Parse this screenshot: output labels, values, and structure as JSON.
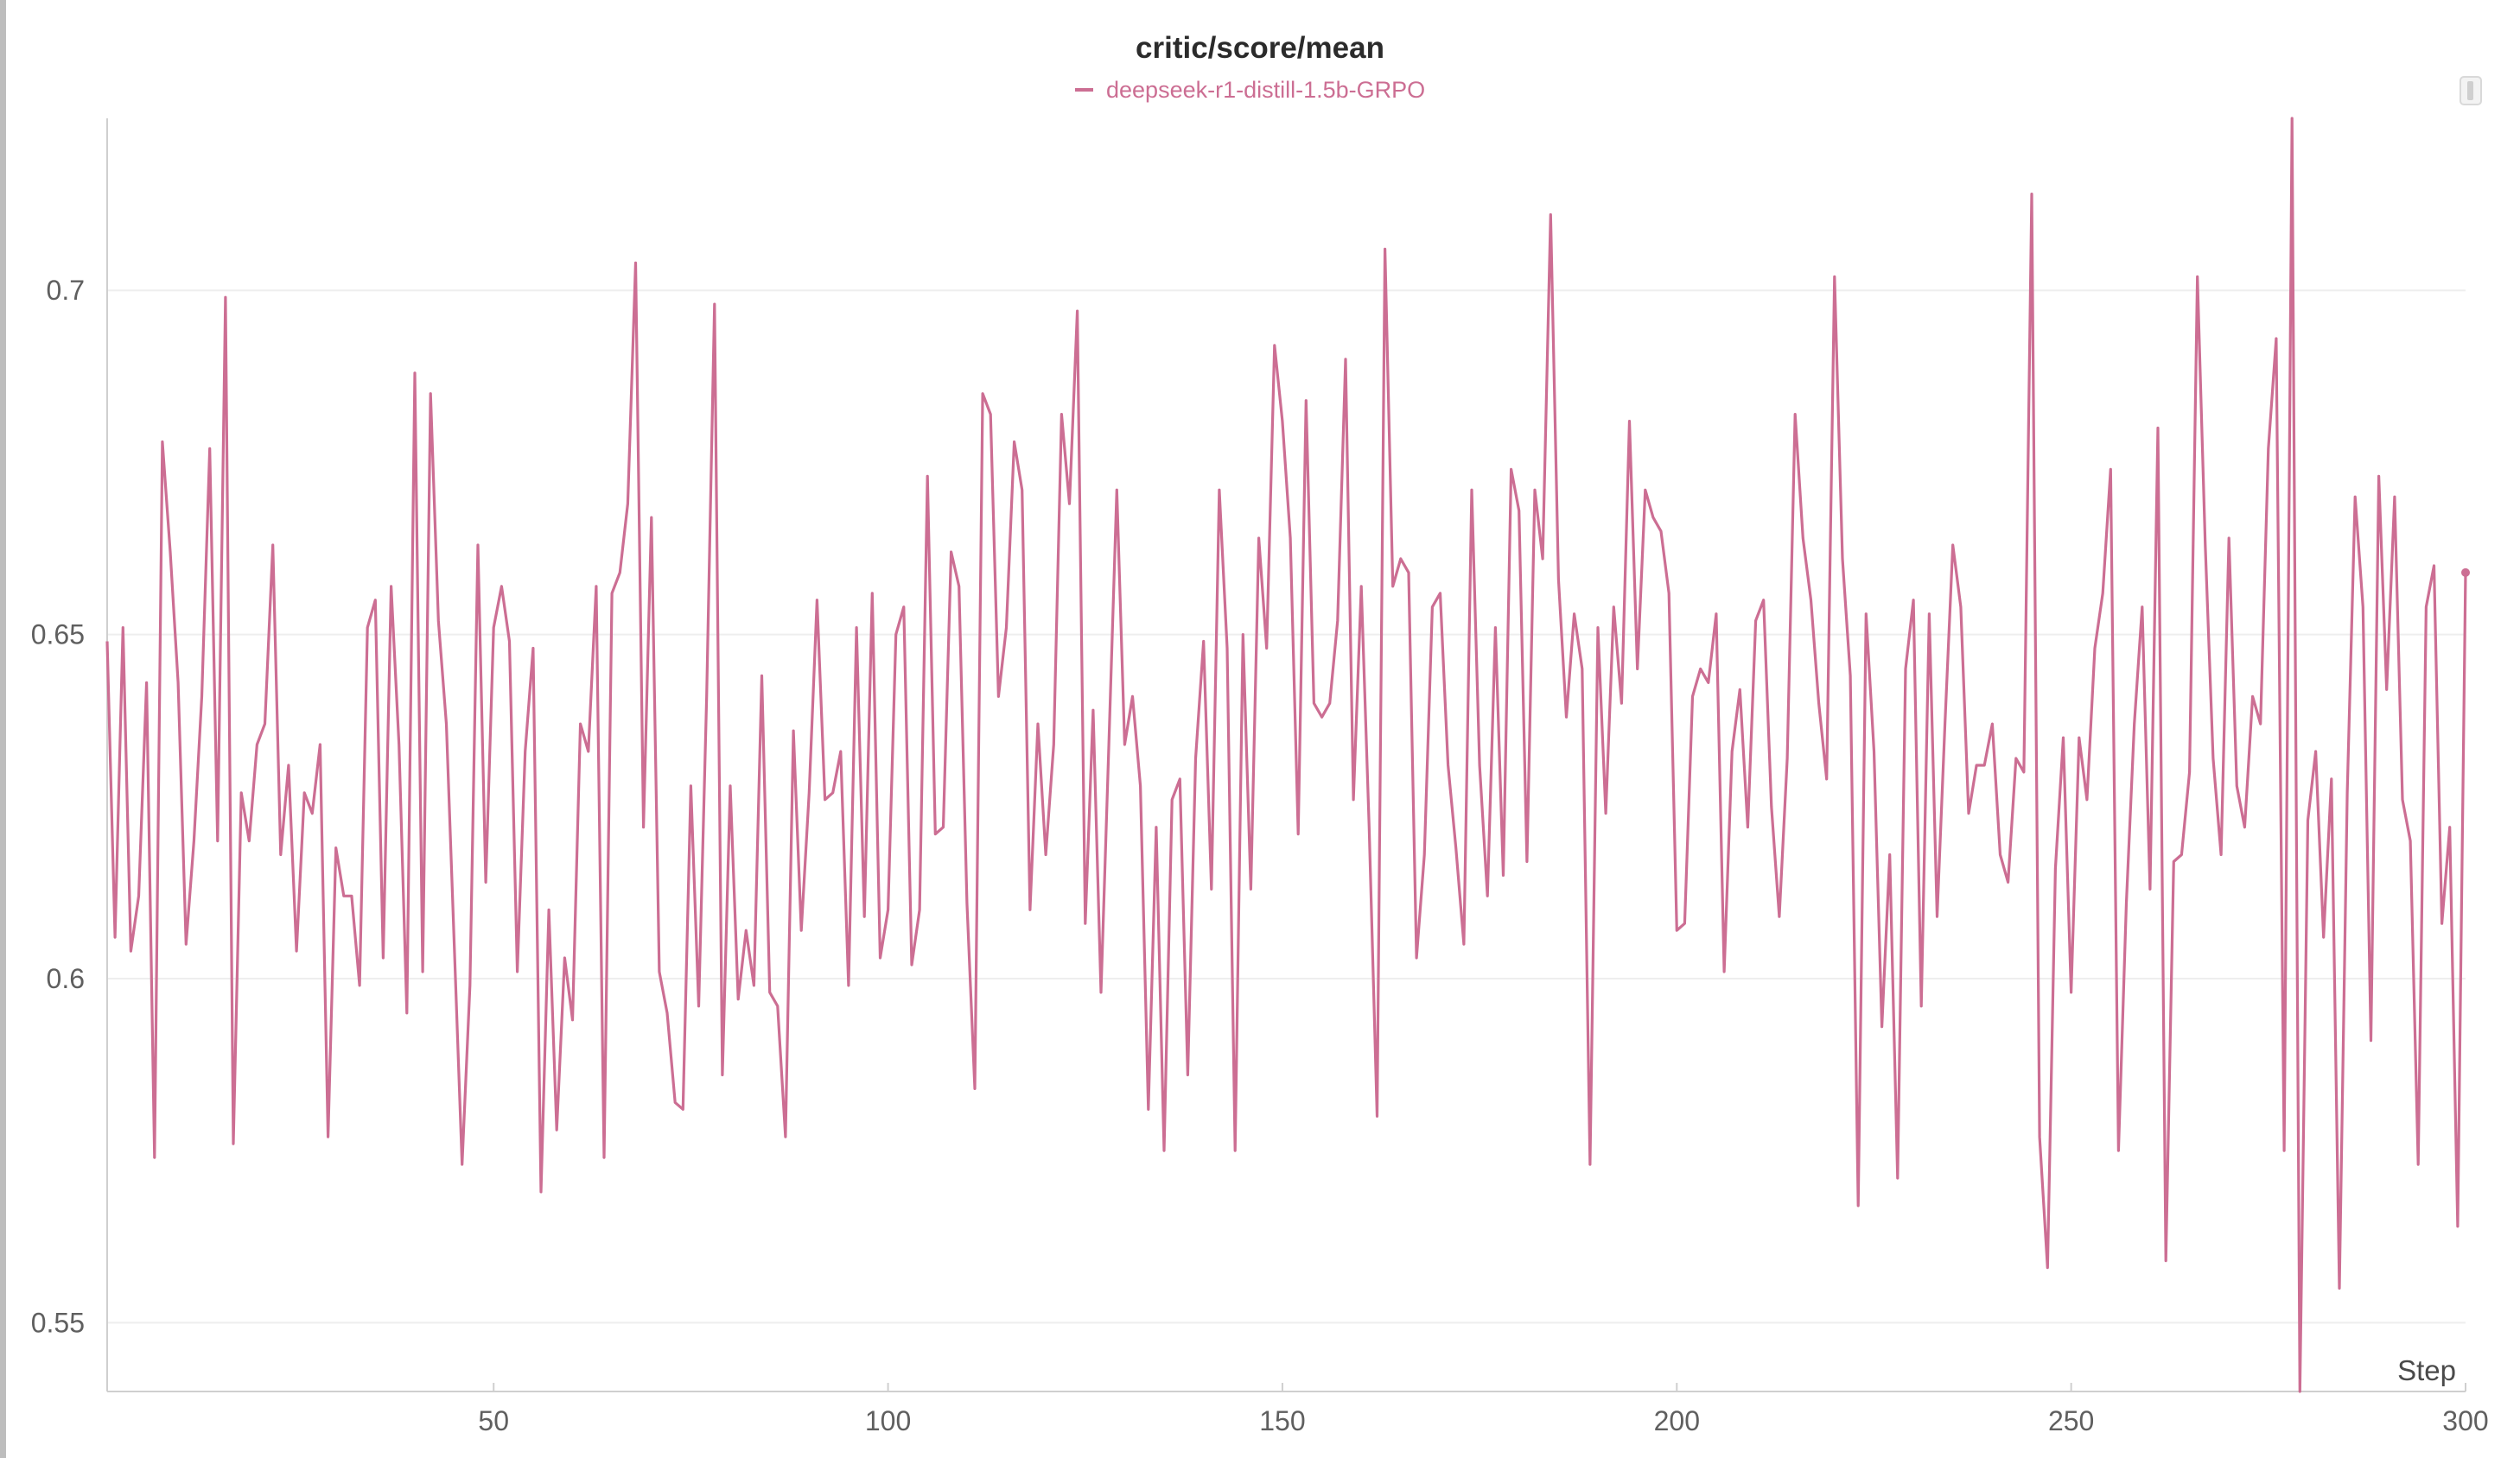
{
  "chart_data": {
    "type": "line",
    "title": "critic/score/mean",
    "xlabel": "Step",
    "ylabel": "",
    "xlim": [
      1,
      300
    ],
    "ylim": [
      0.54,
      0.725
    ],
    "x_ticks": [
      50,
      100,
      150,
      200,
      250,
      300
    ],
    "y_ticks": [
      0.55,
      0.6,
      0.65,
      0.7
    ],
    "x_tick_labels": [
      "50",
      "100",
      "150",
      "200",
      "250",
      "300"
    ],
    "y_tick_labels": [
      "0.55",
      "0.6",
      "0.65",
      "0.7"
    ],
    "grid": true,
    "legend_position": "top-center",
    "series": [
      {
        "name": "deepseek-r1-distill-1.5b-GRPO",
        "color": "#cc6e93",
        "x_start": 1,
        "x_step": 1,
        "values": [
          0.649,
          0.606,
          0.651,
          0.604,
          0.612,
          0.643,
          0.574,
          0.678,
          0.662,
          0.643,
          0.605,
          0.62,
          0.641,
          0.677,
          0.62,
          0.699,
          0.576,
          0.627,
          0.62,
          0.634,
          0.637,
          0.663,
          0.618,
          0.631,
          0.604,
          0.627,
          0.624,
          0.634,
          0.577,
          0.619,
          0.612,
          0.612,
          0.599,
          0.651,
          0.655,
          0.603,
          0.657,
          0.634,
          0.595,
          0.688,
          0.601,
          0.685,
          0.652,
          0.637,
          0.605,
          0.573,
          0.599,
          0.663,
          0.614,
          0.651,
          0.657,
          0.649,
          0.601,
          0.633,
          0.648,
          0.569,
          0.61,
          0.578,
          0.603,
          0.594,
          0.637,
          0.633,
          0.657,
          0.574,
          0.656,
          0.659,
          0.669,
          0.704,
          0.622,
          0.667,
          0.601,
          0.595,
          0.582,
          0.581,
          0.628,
          0.596,
          0.641,
          0.698,
          0.586,
          0.628,
          0.597,
          0.607,
          0.599,
          0.644,
          0.598,
          0.596,
          0.577,
          0.636,
          0.607,
          0.627,
          0.655,
          0.626,
          0.627,
          0.633,
          0.599,
          0.651,
          0.609,
          0.656,
          0.603,
          0.61,
          0.65,
          0.654,
          0.602,
          0.61,
          0.673,
          0.621,
          0.622,
          0.662,
          0.657,
          0.611,
          0.584,
          0.685,
          0.682,
          0.641,
          0.651,
          0.678,
          0.671,
          0.61,
          0.637,
          0.618,
          0.634,
          0.682,
          0.669,
          0.697,
          0.608,
          0.639,
          0.598,
          0.634,
          0.671,
          0.634,
          0.641,
          0.628,
          0.581,
          0.622,
          0.575,
          0.626,
          0.629,
          0.586,
          0.632,
          0.649,
          0.613,
          0.671,
          0.648,
          0.575,
          0.65,
          0.613,
          0.664,
          0.648,
          0.692,
          0.681,
          0.664,
          0.621,
          0.684,
          0.64,
          0.638,
          0.64,
          0.652,
          0.69,
          0.626,
          0.657,
          0.622,
          0.58,
          0.706,
          0.657,
          0.661,
          0.659,
          0.603,
          0.618,
          0.654,
          0.656,
          0.631,
          0.619,
          0.605,
          0.671,
          0.631,
          0.612,
          0.651,
          0.615,
          0.674,
          0.668,
          0.617,
          0.671,
          0.661,
          0.711,
          0.658,
          0.638,
          0.653,
          0.645,
          0.573,
          0.651,
          0.624,
          0.654,
          0.64,
          0.681,
          0.645,
          0.671,
          0.667,
          0.665,
          0.656,
          0.607,
          0.608,
          0.641,
          0.645,
          0.643,
          0.653,
          0.601,
          0.633,
          0.642,
          0.622,
          0.652,
          0.655,
          0.625,
          0.609,
          0.632,
          0.682,
          0.664,
          0.655,
          0.64,
          0.629,
          0.702,
          0.661,
          0.644,
          0.567,
          0.653,
          0.633,
          0.593,
          0.618,
          0.571,
          0.645,
          0.655,
          0.596,
          0.653,
          0.609,
          0.637,
          0.663,
          0.654,
          0.624,
          0.631,
          0.631,
          0.637,
          0.618,
          0.614,
          0.632,
          0.63,
          0.714,
          0.577,
          0.558,
          0.616,
          0.635,
          0.598,
          0.635,
          0.626,
          0.648,
          0.656,
          0.674,
          0.575,
          0.611,
          0.637,
          0.654,
          0.613,
          0.68,
          0.559,
          0.617,
          0.618,
          0.63,
          0.702,
          0.663,
          0.632,
          0.618,
          0.664,
          0.628,
          0.622,
          0.641,
          0.637,
          0.677,
          0.693,
          0.575,
          0.725,
          0.54,
          0.623,
          0.633,
          0.606,
          0.629,
          0.555,
          0.627,
          0.67,
          0.654,
          0.591,
          0.673,
          0.642,
          0.67,
          0.626,
          0.62,
          0.573,
          0.654,
          0.66,
          0.608,
          0.622,
          0.564,
          0.659
        ]
      }
    ]
  }
}
